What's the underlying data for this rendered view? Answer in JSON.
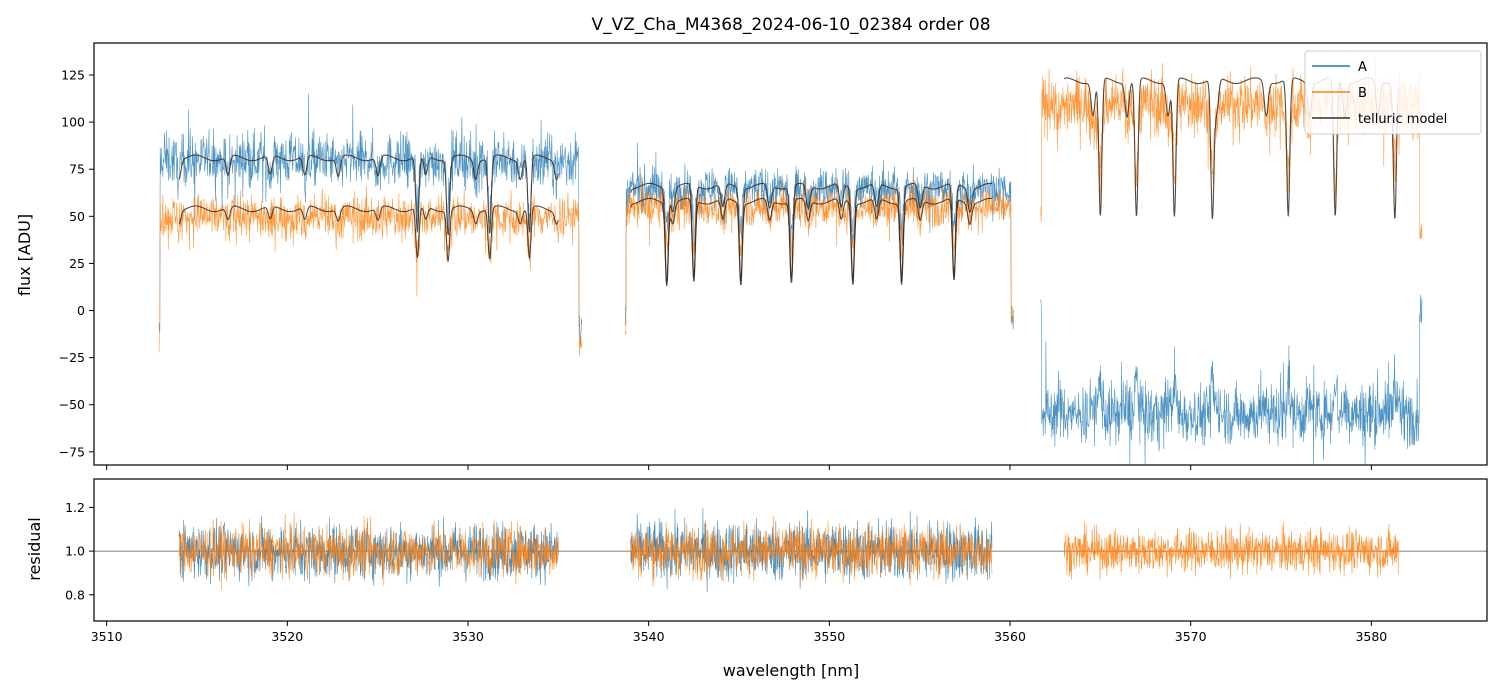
{
  "colors": {
    "A": "#1f77b4",
    "B": "#ff7f0e",
    "model": "#3a2a1f",
    "hline": "#555555"
  },
  "chart_data": [
    {
      "type": "line",
      "title": "V_VZ_Cha_M4368_2024-06-10_02384  order 08",
      "xlabel": "",
      "ylabel": "flux [ADU]",
      "xlim": [
        3509.3,
        3586.4
      ],
      "ylim": [
        -82,
        142
      ],
      "yticks": [
        -75,
        -50,
        -25,
        0,
        25,
        50,
        75,
        100,
        125
      ],
      "ytick_labels": [
        "−75",
        "−50",
        "−25",
        "0",
        "25",
        "50",
        "75",
        "100",
        "125"
      ],
      "legend_position": "top-right",
      "series": [
        {
          "name": "A",
          "color_key": "A",
          "segments": [
            {
              "x_range": [
                3512.9,
                3536.3
              ],
              "level": 80,
              "noise": 7,
              "spread": 14,
              "ends_low": -10
            },
            {
              "x_range": [
                3538.7,
                3560.2
              ],
              "level": 65,
              "noise": 6,
              "spread": 11,
              "ends_low": -5
            },
            {
              "x_range": [
                3561.7,
                3582.8
              ],
              "level": -55,
              "noise": 9,
              "spread": 16,
              "ends_low": 0
            }
          ]
        },
        {
          "name": "B",
          "color_key": "B",
          "segments": [
            {
              "x_range": [
                3512.9,
                3536.3
              ],
              "level": 50,
              "noise": 6,
              "spread": 12,
              "ends_low": -18
            },
            {
              "x_range": [
                3538.7,
                3560.2
              ],
              "level": 55,
              "noise": 6,
              "spread": 10,
              "ends_low": -7
            },
            {
              "x_range": [
                3561.7,
                3582.8
              ],
              "level": 110,
              "noise": 9,
              "spread": 16,
              "ends_low": 45
            }
          ]
        },
        {
          "name": "telluric model",
          "color_key": "model",
          "segments": [
            {
              "x_range": [
                3514.0,
                3535.0
              ],
              "level": 81,
              "depth": 0.5
            },
            {
              "x_range": [
                3514.0,
                3535.0
              ],
              "level": 54,
              "depth": 0.5
            },
            {
              "x_range": [
                3539.0,
                3559.0
              ],
              "level": 66,
              "depth": 0.75
            },
            {
              "x_range": [
                3539.0,
                3559.0
              ],
              "level": 58,
              "depth": 0.75
            },
            {
              "x_range": [
                3563.0,
                3581.5
              ],
              "level": 122,
              "depth": 0.6
            }
          ]
        }
      ],
      "absorption_lines_x": [
        3527.2,
        3528.9,
        3531.2,
        3533.4,
        3541.0,
        3542.5,
        3545.1,
        3547.9,
        3551.3,
        3554.0,
        3556.9,
        3565.0,
        3567.0,
        3569.1,
        3571.2,
        3575.4,
        3578.0,
        3581.3
      ]
    },
    {
      "type": "line",
      "title": "",
      "xlabel": "wavelength [nm]",
      "ylabel": "residual",
      "xlim": [
        3509.3,
        3586.4
      ],
      "ylim": [
        0.68,
        1.33
      ],
      "yticks": [
        0.8,
        1.0,
        1.2
      ],
      "ytick_labels": [
        "0.8",
        "1.0",
        "1.2"
      ],
      "xticks": [
        3510,
        3520,
        3530,
        3540,
        3550,
        3560,
        3570,
        3580
      ],
      "xtick_labels": [
        "3510",
        "3520",
        "3530",
        "3540",
        "3550",
        "3560",
        "3570",
        "3580"
      ],
      "reference_line": 1.0,
      "series": [
        {
          "name": "A",
          "color_key": "A",
          "segments": [
            {
              "x_range": [
                3514.0,
                3535.0
              ],
              "level": 1.0,
              "spread": 0.13
            },
            {
              "x_range": [
                3539.0,
                3559.0
              ],
              "level": 1.0,
              "spread": 0.14
            }
          ]
        },
        {
          "name": "B",
          "color_key": "B",
          "segments": [
            {
              "x_range": [
                3514.0,
                3535.0
              ],
              "level": 1.0,
              "spread": 0.12
            },
            {
              "x_range": [
                3539.0,
                3559.0
              ],
              "level": 1.0,
              "spread": 0.12
            },
            {
              "x_range": [
                3563.0,
                3581.5
              ],
              "level": 1.0,
              "spread": 0.1
            }
          ]
        }
      ]
    }
  ]
}
